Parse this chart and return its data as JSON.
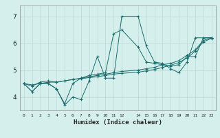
{
  "xlabel": "Humidex (Indice chaleur)",
  "bg_color": "#d4efec",
  "grid_color": "#bcd9d6",
  "line_color": "#1a6b6b",
  "ylim": [
    3.5,
    7.4
  ],
  "xlim": [
    -0.5,
    23.5
  ],
  "x_vals": [
    0,
    1,
    2,
    3,
    4,
    5,
    6,
    7,
    8,
    9,
    10,
    11,
    12,
    14,
    15,
    16,
    17,
    18,
    19,
    20,
    21,
    22,
    23
  ],
  "lines": [
    [
      4.5,
      4.2,
      4.5,
      4.5,
      4.3,
      3.7,
      4.0,
      3.9,
      4.6,
      5.5,
      4.7,
      4.7,
      7.0,
      7.0,
      5.9,
      5.3,
      5.25,
      5.05,
      4.9,
      5.3,
      6.2,
      6.2,
      6.2
    ],
    [
      4.5,
      4.2,
      4.5,
      4.5,
      4.3,
      3.75,
      4.5,
      4.7,
      4.8,
      4.85,
      4.9,
      6.35,
      6.5,
      5.85,
      5.3,
      5.25,
      5.2,
      5.15,
      5.2,
      5.5,
      5.5,
      6.2,
      6.2
    ],
    [
      4.5,
      4.4,
      4.55,
      4.6,
      4.55,
      4.6,
      4.65,
      4.7,
      4.75,
      4.8,
      4.85,
      4.9,
      4.95,
      5.0,
      5.05,
      5.1,
      5.2,
      5.25,
      5.35,
      5.55,
      5.75,
      6.1,
      6.2
    ],
    [
      4.5,
      4.45,
      4.5,
      4.55,
      4.55,
      4.6,
      4.65,
      4.68,
      4.72,
      4.75,
      4.8,
      4.85,
      4.88,
      4.92,
      4.97,
      5.02,
      5.1,
      5.18,
      5.28,
      5.45,
      5.7,
      6.05,
      6.18
    ]
  ]
}
